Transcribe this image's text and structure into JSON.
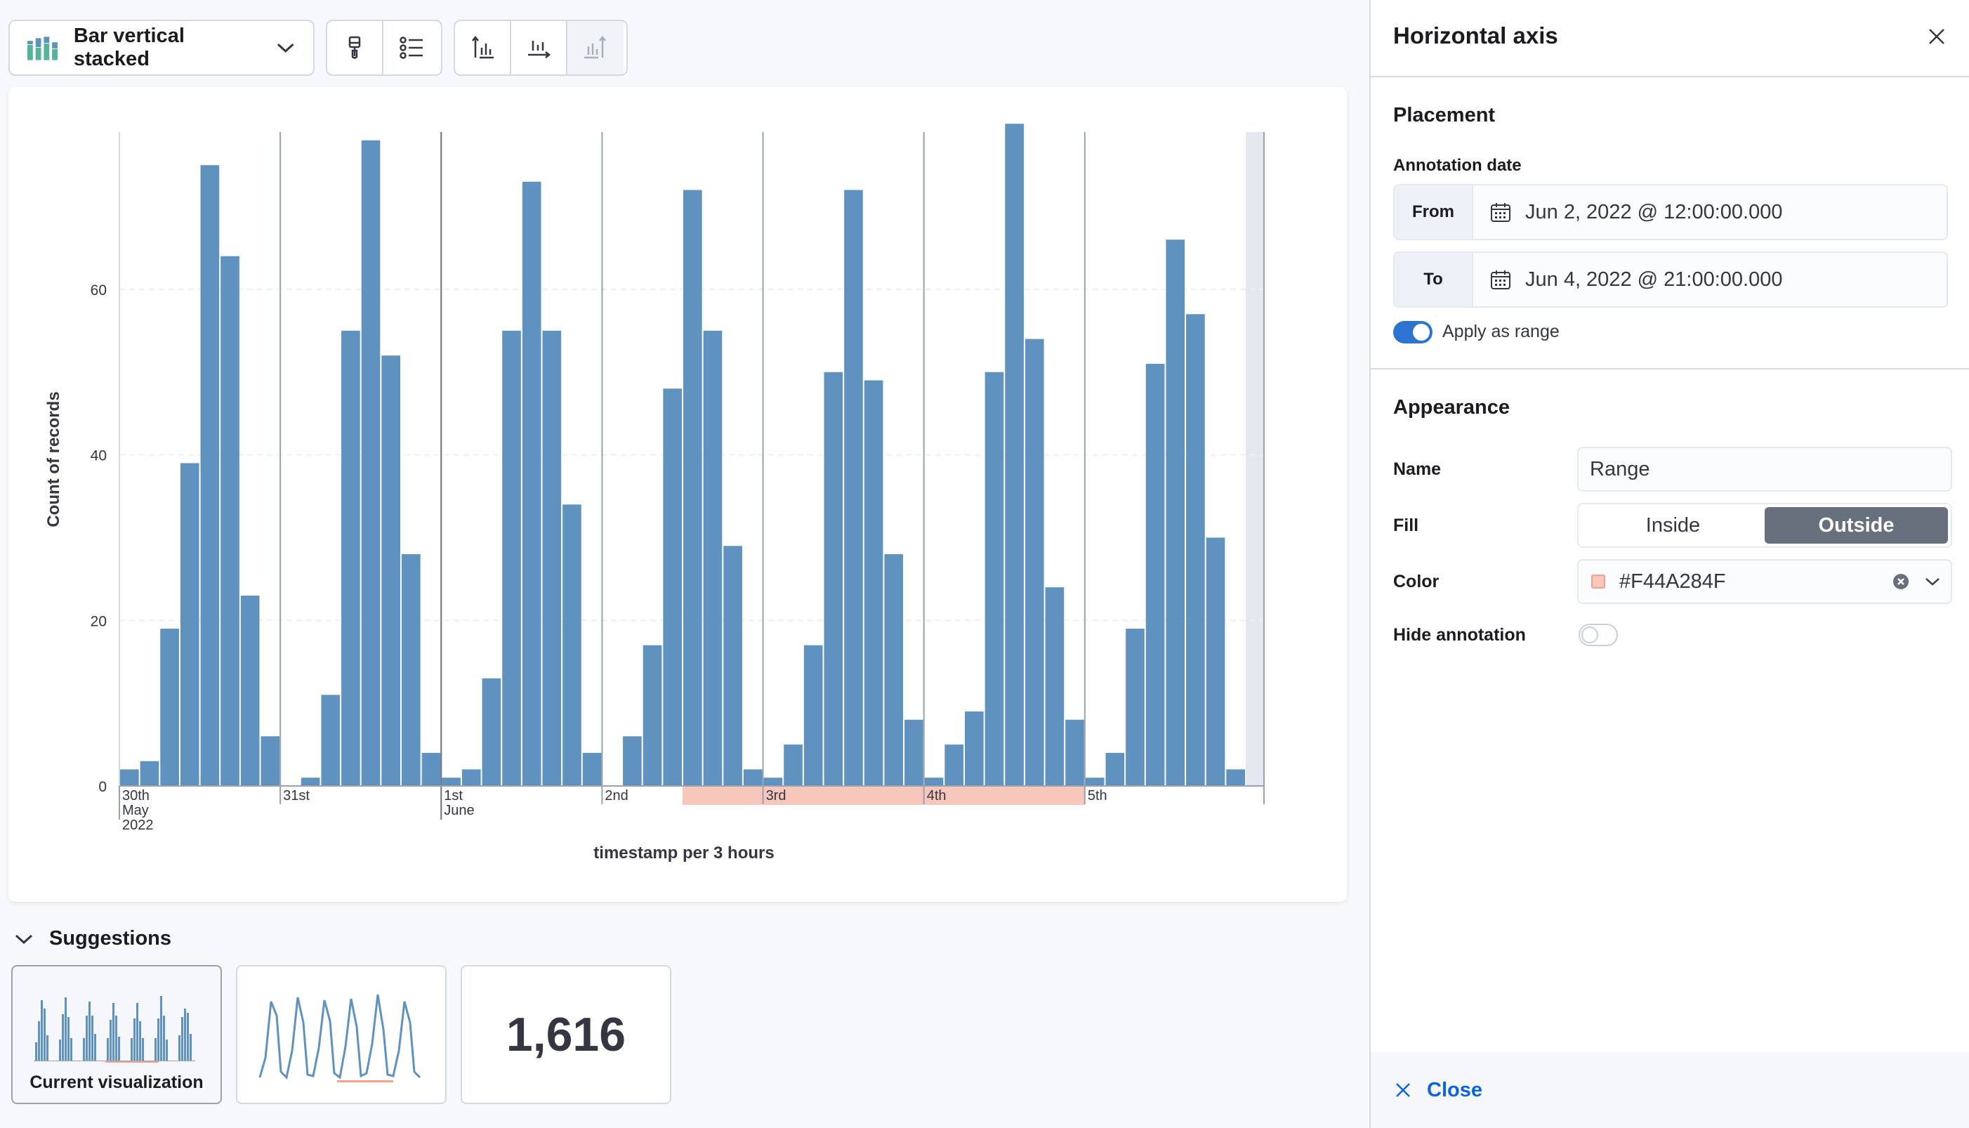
{
  "toolbar": {
    "chart_type_label": "Bar vertical stacked",
    "buttons": [
      "paintbrush-icon",
      "legend-icon",
      "left-axis-icon",
      "bottom-axis-icon",
      "right-axis-icon"
    ]
  },
  "chart_data": {
    "type": "bar",
    "stacked": true,
    "ylabel": "Count of records",
    "xlabel": "timestamp per 3 hours",
    "ylim": [
      0,
      79
    ],
    "yticks": [
      0,
      20,
      40,
      60
    ],
    "bar_color": "#6092C0",
    "day_labels": [
      {
        "lines": [
          "30th",
          "May",
          "2022"
        ],
        "bin": 0
      },
      {
        "lines": [
          "31st"
        ],
        "bin": 8
      },
      {
        "lines": [
          "1st",
          "June"
        ],
        "bin": 16
      },
      {
        "lines": [
          "2nd"
        ],
        "bin": 24
      },
      {
        "lines": [
          "3rd"
        ],
        "bin": 32
      },
      {
        "lines": [
          "4th"
        ],
        "bin": 40
      },
      {
        "lines": [
          "5th"
        ],
        "bin": 48
      }
    ],
    "values": [
      2,
      3,
      19,
      39,
      75,
      64,
      23,
      6,
      0,
      1,
      11,
      55,
      78,
      52,
      28,
      4,
      1,
      2,
      13,
      55,
      73,
      55,
      34,
      4,
      0,
      6,
      17,
      48,
      72,
      55,
      29,
      2,
      1,
      5,
      17,
      50,
      72,
      49,
      28,
      8,
      1,
      5,
      9,
      50,
      80,
      54,
      24,
      8,
      1,
      4,
      19,
      51,
      66,
      57,
      30,
      2
    ],
    "annotation": {
      "name": "Range",
      "from_bin": 28,
      "to_bin": 47,
      "color": "#F44A284F",
      "fill": "Outside"
    }
  },
  "suggestions": {
    "title": "Suggestions",
    "current_label": "Current visualization",
    "metric_value": "1,616"
  },
  "flyout": {
    "title": "Horizontal axis",
    "placement": {
      "title": "Placement",
      "annotation_date_label": "Annotation date",
      "from_label": "From",
      "from_value": "Jun 2, 2022 @ 12:00:00.000",
      "to_label": "To",
      "to_value": "Jun 4, 2022 @ 21:00:00.000",
      "apply_range_label": "Apply as range",
      "apply_range": true
    },
    "appearance": {
      "title": "Appearance",
      "name_label": "Name",
      "name_value": "Range",
      "fill_label": "Fill",
      "fill_options": [
        "Inside",
        "Outside"
      ],
      "fill_selected": "Outside",
      "color_label": "Color",
      "color_value": "#F44A284F",
      "hide_label": "Hide annotation",
      "hide": false
    },
    "close_label": "Close"
  }
}
